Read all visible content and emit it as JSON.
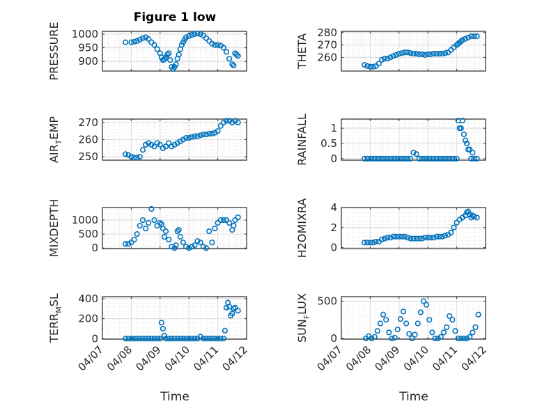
{
  "title": "Figure 1 low",
  "x_label": "Time",
  "x_ticks": [
    "04/07",
    "04/08",
    "04/09",
    "04/10",
    "04/11",
    "04/12"
  ],
  "colors": {
    "marker": "#0072bd",
    "axis": "#262626",
    "grid": "#dcdcdc"
  },
  "chart_data": [
    {
      "type": "scatter",
      "ylabel": "PRESSURE",
      "ylim": [
        865,
        1010
      ],
      "yticks": [
        900,
        950,
        1000
      ],
      "grid": true,
      "x": [
        0.8,
        1.0,
        1.1,
        1.2,
        1.3,
        1.4,
        1.5,
        1.6,
        1.7,
        1.8,
        1.9,
        2.0,
        2.05,
        2.1,
        2.15,
        2.2,
        2.25,
        2.3,
        2.35,
        2.4,
        2.45,
        2.5,
        2.55,
        2.6,
        2.65,
        2.7,
        2.75,
        2.8,
        2.85,
        2.9,
        3.0,
        3.1,
        3.2,
        3.3,
        3.4,
        3.5,
        3.6,
        3.7,
        3.8,
        3.9,
        4.0,
        4.1,
        4.2,
        4.3,
        4.4,
        4.5,
        4.55,
        4.6,
        4.65,
        4.7
      ],
      "y": [
        970,
        970,
        972,
        975,
        980,
        985,
        988,
        982,
        970,
        960,
        945,
        930,
        915,
        905,
        908,
        915,
        925,
        930,
        905,
        880,
        872,
        880,
        890,
        910,
        925,
        945,
        960,
        970,
        980,
        988,
        993,
        997,
        1000,
        1002,
        1000,
        995,
        985,
        975,
        965,
        960,
        960,
        958,
        950,
        935,
        910,
        890,
        885,
        930,
        925,
        920
      ]
    },
    {
      "type": "scatter",
      "ylabel": "THETA",
      "ylim": [
        249,
        281
      ],
      "yticks": [
        260,
        270,
        280
      ],
      "grid": true,
      "x": [
        0.8,
        0.9,
        1.0,
        1.1,
        1.2,
        1.3,
        1.4,
        1.5,
        1.6,
        1.7,
        1.8,
        1.9,
        2.0,
        2.1,
        2.2,
        2.3,
        2.4,
        2.5,
        2.6,
        2.7,
        2.8,
        2.9,
        3.0,
        3.1,
        3.2,
        3.3,
        3.4,
        3.5,
        3.6,
        3.7,
        3.8,
        3.9,
        4.0,
        4.05,
        4.1,
        4.15,
        4.2,
        4.3,
        4.4,
        4.5,
        4.6,
        4.7
      ],
      "y": [
        254,
        253,
        252.5,
        252.5,
        253,
        255,
        258,
        259,
        259,
        260,
        261,
        262,
        263,
        263.5,
        264,
        264,
        263.5,
        263,
        263,
        262.5,
        262.5,
        262,
        262.5,
        262.5,
        263,
        263,
        263,
        263,
        263.5,
        264,
        266,
        268,
        270,
        271,
        272,
        273,
        274,
        275,
        276,
        277,
        277,
        277
      ]
    },
    {
      "type": "scatter",
      "ylabel": "AIR_TEMP",
      "ylim": [
        248,
        272
      ],
      "yticks": [
        250,
        260,
        270
      ],
      "grid": true,
      "x": [
        0.8,
        0.9,
        1.0,
        1.1,
        1.2,
        1.3,
        1.4,
        1.5,
        1.6,
        1.7,
        1.8,
        1.9,
        2.0,
        2.1,
        2.2,
        2.3,
        2.4,
        2.5,
        2.6,
        2.7,
        2.8,
        2.9,
        3.0,
        3.1,
        3.2,
        3.3,
        3.4,
        3.5,
        3.6,
        3.7,
        3.8,
        3.9,
        4.0,
        4.1,
        4.2,
        4.3,
        4.4,
        4.5,
        4.6,
        4.7
      ],
      "y": [
        251.5,
        251,
        250,
        249.5,
        249.5,
        250,
        254,
        257,
        258,
        257,
        256,
        258,
        257,
        255,
        256,
        258,
        256,
        257,
        258,
        259,
        260,
        261,
        261,
        261.5,
        262,
        262,
        262.5,
        263,
        263,
        263.5,
        263.5,
        264,
        265,
        268,
        270,
        271,
        271,
        270,
        271,
        270
      ]
    },
    {
      "type": "scatter",
      "ylabel": "RAINFALL",
      "ylim": [
        -0.05,
        1.3
      ],
      "yticks": [
        0,
        0.5,
        1
      ],
      "grid": true,
      "x": [
        0.8,
        0.9,
        1.0,
        1.1,
        1.2,
        1.3,
        1.4,
        1.5,
        1.6,
        1.7,
        1.8,
        1.9,
        2.0,
        2.1,
        2.2,
        2.3,
        2.4,
        2.5,
        2.6,
        2.7,
        2.8,
        2.9,
        3.0,
        3.1,
        3.2,
        3.3,
        3.4,
        3.5,
        3.6,
        3.7,
        3.8,
        3.9,
        4.0,
        4.05,
        4.1,
        4.15,
        4.2,
        4.25,
        4.3,
        4.35,
        4.4,
        4.45,
        4.5,
        4.55,
        4.6,
        4.7
      ],
      "y": [
        0,
        0,
        0,
        0,
        0,
        0,
        0,
        0,
        0,
        0,
        0,
        0,
        0,
        0,
        0,
        0,
        0,
        0.2,
        0.15,
        0,
        0,
        0,
        0,
        0,
        0,
        0,
        0,
        0,
        0,
        0,
        0,
        0,
        0,
        1.25,
        1.0,
        1.0,
        1.25,
        0.8,
        0.6,
        0.5,
        0.3,
        0.3,
        0,
        0.2,
        0,
        0
      ]
    },
    {
      "type": "scatter",
      "ylabel": "MIXDEPTH",
      "ylim": [
        -20,
        1450
      ],
      "yticks": [
        0,
        500,
        1000
      ],
      "grid": true,
      "x": [
        0.8,
        0.9,
        1.0,
        1.1,
        1.2,
        1.3,
        1.4,
        1.5,
        1.6,
        1.7,
        1.8,
        1.9,
        2.0,
        2.05,
        2.1,
        2.15,
        2.2,
        2.3,
        2.4,
        2.5,
        2.55,
        2.6,
        2.65,
        2.7,
        2.8,
        2.9,
        3.0,
        3.1,
        3.2,
        3.3,
        3.4,
        3.5,
        3.6,
        3.7,
        3.8,
        3.9,
        4.0,
        4.1,
        4.2,
        4.3,
        4.4,
        4.5,
        4.55,
        4.6,
        4.7
      ],
      "y": [
        150,
        150,
        200,
        300,
        500,
        800,
        1000,
        700,
        900,
        1400,
        1000,
        800,
        900,
        850,
        700,
        400,
        600,
        300,
        50,
        0,
        100,
        600,
        650,
        400,
        200,
        50,
        0,
        50,
        100,
        250,
        200,
        50,
        0,
        600,
        200,
        700,
        900,
        1000,
        1000,
        1000,
        900,
        650,
        800,
        1000,
        1100
      ]
    },
    {
      "type": "scatter",
      "ylabel": "H2OMIXRA",
      "ylim": [
        -0.1,
        4
      ],
      "yticks": [
        0,
        2,
        4
      ],
      "grid": true,
      "x": [
        0.8,
        0.9,
        1.0,
        1.1,
        1.2,
        1.3,
        1.4,
        1.5,
        1.6,
        1.7,
        1.8,
        1.9,
        2.0,
        2.1,
        2.2,
        2.3,
        2.4,
        2.5,
        2.6,
        2.7,
        2.8,
        2.9,
        3.0,
        3.1,
        3.2,
        3.3,
        3.4,
        3.5,
        3.6,
        3.7,
        3.8,
        3.9,
        4.0,
        4.1,
        4.2,
        4.3,
        4.35,
        4.4,
        4.45,
        4.5,
        4.55,
        4.6,
        4.7
      ],
      "y": [
        0.5,
        0.5,
        0.5,
        0.5,
        0.6,
        0.6,
        0.8,
        0.9,
        1.0,
        1.0,
        1.1,
        1.1,
        1.1,
        1.1,
        1.1,
        1.0,
        0.9,
        0.9,
        0.9,
        0.9,
        0.9,
        1.0,
        1.0,
        1.0,
        1.0,
        1.1,
        1.1,
        1.1,
        1.2,
        1.3,
        1.5,
        2.0,
        2.5,
        2.8,
        3.0,
        3.2,
        3.5,
        3.6,
        3.3,
        3.0,
        3.2,
        3.1,
        3.0
      ]
    },
    {
      "type": "scatter",
      "ylabel": "TERR_MSL",
      "ylim": [
        -5,
        420
      ],
      "yticks": [
        0,
        200,
        400
      ],
      "grid": true,
      "x": [
        0.8,
        0.9,
        1.0,
        1.1,
        1.2,
        1.3,
        1.4,
        1.5,
        1.6,
        1.7,
        1.8,
        1.9,
        2.0,
        2.05,
        2.1,
        2.15,
        2.2,
        2.3,
        2.4,
        2.5,
        2.6,
        2.7,
        2.8,
        2.9,
        3.0,
        3.1,
        3.2,
        3.3,
        3.4,
        3.5,
        3.6,
        3.7,
        3.8,
        3.9,
        4.0,
        4.1,
        4.2,
        4.25,
        4.3,
        4.35,
        4.4,
        4.45,
        4.5,
        4.55,
        4.6,
        4.7
      ],
      "y": [
        0,
        0,
        0,
        0,
        0,
        0,
        0,
        0,
        0,
        0,
        0,
        0,
        0,
        160,
        100,
        30,
        0,
        0,
        0,
        0,
        0,
        0,
        0,
        0,
        0,
        0,
        0,
        0,
        20,
        0,
        0,
        0,
        0,
        0,
        0,
        0,
        0,
        80,
        310,
        360,
        320,
        230,
        250,
        300,
        310,
        280
      ]
    },
    {
      "type": "scatter",
      "ylabel": "SUN_FLUX",
      "ylim": [
        -10,
        560
      ],
      "yticks": [
        0,
        500
      ],
      "grid": true,
      "x": [
        0.85,
        0.95,
        1.05,
        1.15,
        1.25,
        1.35,
        1.45,
        1.55,
        1.65,
        1.75,
        1.85,
        1.95,
        2.05,
        2.15,
        2.25,
        2.35,
        2.45,
        2.55,
        2.65,
        2.75,
        2.85,
        2.95,
        3.05,
        3.15,
        3.25,
        3.35,
        3.45,
        3.55,
        3.65,
        3.75,
        3.85,
        3.95,
        4.05,
        4.15,
        4.25,
        4.35,
        4.45,
        4.55,
        4.65,
        4.75
      ],
      "y": [
        0,
        30,
        0,
        20,
        100,
        200,
        320,
        250,
        80,
        0,
        10,
        120,
        260,
        360,
        200,
        60,
        0,
        50,
        200,
        350,
        500,
        450,
        250,
        80,
        0,
        0,
        20,
        80,
        150,
        300,
        250,
        100,
        0,
        0,
        0,
        0,
        20,
        80,
        150,
        320
      ]
    }
  ]
}
